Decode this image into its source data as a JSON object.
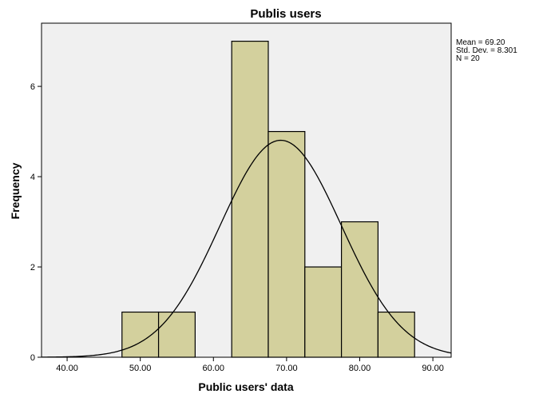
{
  "chart_data": {
    "type": "bar",
    "title": "Publis users",
    "xlabel": "Public users' data",
    "ylabel": "Frequency",
    "bins": [
      {
        "start": 47.5,
        "end": 52.5,
        "count": 1
      },
      {
        "start": 52.5,
        "end": 57.5,
        "count": 1
      },
      {
        "start": 57.5,
        "end": 62.5,
        "count": 0
      },
      {
        "start": 62.5,
        "end": 67.5,
        "count": 7
      },
      {
        "start": 67.5,
        "end": 72.5,
        "count": 5
      },
      {
        "start": 72.5,
        "end": 77.5,
        "count": 2
      },
      {
        "start": 77.5,
        "end": 82.5,
        "count": 3
      },
      {
        "start": 82.5,
        "end": 87.5,
        "count": 1
      }
    ],
    "x_ticks": [
      "40.00",
      "50.00",
      "60.00",
      "70.00",
      "80.00",
      "90.00"
    ],
    "y_ticks": [
      "0",
      "2",
      "4",
      "6"
    ],
    "xlim": [
      36.5,
      92.5
    ],
    "ylim": [
      0,
      7.4
    ],
    "normal_curve": {
      "mean": 69.2,
      "sd": 8.301,
      "n": 20,
      "bin_width": 5
    },
    "stats": [
      "Mean = 69.20",
      "Std. Dev. = 8.301",
      "N = 20"
    ],
    "grid": false,
    "colors": {
      "bar_fill": "#d3d09d",
      "bar_stroke": "#000000",
      "plot_background": "#f0f0f0",
      "curve": "#000000"
    }
  }
}
